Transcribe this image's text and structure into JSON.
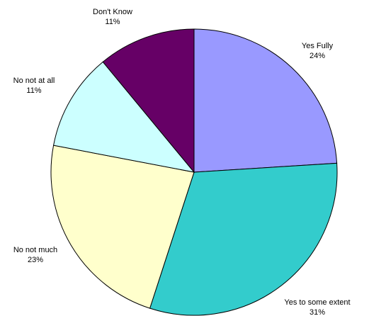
{
  "chart_data": {
    "type": "pie",
    "title": "",
    "legend": "none",
    "slices": [
      {
        "label": "Yes Fully",
        "value": 24,
        "value_label": "24%",
        "color": "#9999FF"
      },
      {
        "label": "Yes to some extent",
        "value": 31,
        "value_label": "31%",
        "color": "#33CCCC"
      },
      {
        "label": "No not much",
        "value": 23,
        "value_label": "23%",
        "color": "#FFFFCC"
      },
      {
        "label": "No not at all",
        "value": 11,
        "value_label": "11%",
        "color": "#CCFFFF"
      },
      {
        "label": "Don't Know",
        "value": 11,
        "value_label": "11%",
        "color": "#660066"
      }
    ]
  }
}
